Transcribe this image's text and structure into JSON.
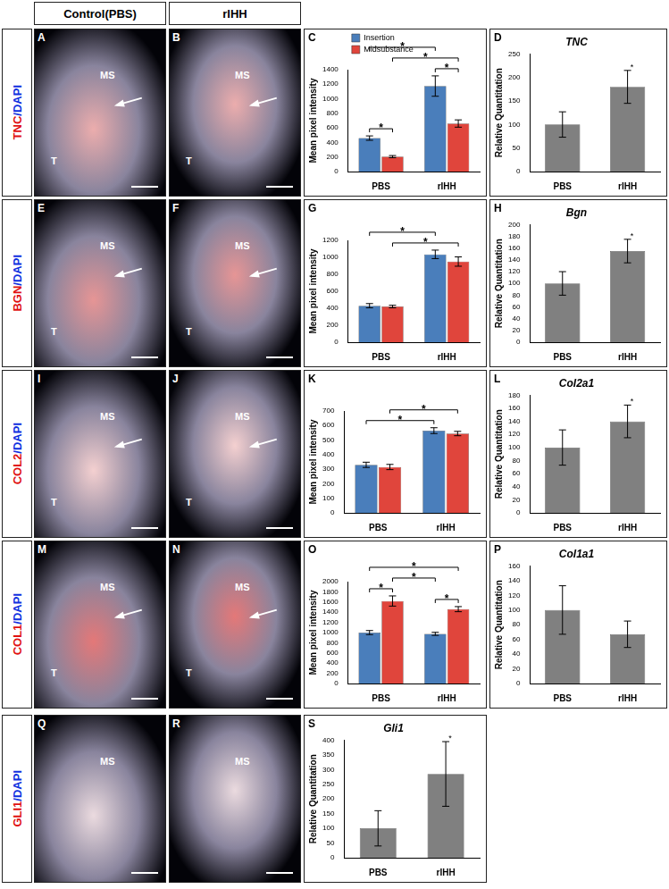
{
  "figure": {
    "header": {
      "columns": [
        "Control(PBS)",
        "rIHH"
      ]
    },
    "rows": [
      {
        "label": "TNC/DAPI",
        "images": [
          {
            "letter": "A",
            "labels": [
              "MS",
              "T"
            ]
          },
          {
            "letter": "B",
            "labels": [
              "MS",
              "T"
            ]
          }
        ]
      },
      {
        "label": "BGN/DAPI",
        "images": [
          {
            "letter": "E",
            "labels": [
              "MS",
              "T"
            ]
          },
          {
            "letter": "F",
            "labels": [
              "MS",
              "T"
            ]
          }
        ]
      },
      {
        "label": "COL2/DAPI",
        "images": [
          {
            "letter": "I",
            "labels": [
              "MS",
              "T"
            ]
          },
          {
            "letter": "J",
            "labels": [
              "MS",
              "T"
            ]
          }
        ]
      },
      {
        "label": "COL1/DAPI",
        "images": [
          {
            "letter": "M",
            "labels": [
              "MS",
              "T"
            ]
          },
          {
            "letter": "N",
            "labels": [
              "MS",
              "T"
            ]
          }
        ]
      },
      {
        "label": "GLI1/DAPI",
        "images": [
          {
            "letter": "Q",
            "labels": [
              "MS"
            ]
          },
          {
            "letter": "R",
            "labels": [
              "MS"
            ]
          }
        ]
      }
    ]
  },
  "chart_data": [
    {
      "type": "bar",
      "panel": "C",
      "y_label": "Mean pixel intensity",
      "categories": [
        "PBS",
        "rIHH"
      ],
      "series": [
        {
          "name": "Insertion",
          "color": "#4a7ebb",
          "values": [
            460,
            1175
          ],
          "errors": [
            30,
            140
          ]
        },
        {
          "name": "Midsubstance",
          "color": "#e0453c",
          "values": [
            205,
            660
          ],
          "errors": [
            15,
            50
          ]
        }
      ],
      "ylim": [
        0,
        1400
      ],
      "yticks": [
        0,
        200,
        400,
        600,
        800,
        1000,
        1200,
        1400
      ],
      "grid": false,
      "legend": "top-left",
      "significance": [
        {
          "from": [
            0,
            0
          ],
          "to": [
            0,
            1
          ],
          "label": "*"
        },
        {
          "from": [
            1,
            0
          ],
          "to": [
            1,
            1
          ],
          "label": "*"
        },
        {
          "from": [
            0,
            0
          ],
          "to": [
            1,
            0
          ],
          "label": "*"
        },
        {
          "from": [
            0,
            1
          ],
          "to": [
            1,
            1
          ],
          "label": "*"
        }
      ]
    },
    {
      "type": "bar",
      "panel": "D",
      "title": "TNC",
      "y_label": "Relative Quantitation",
      "categories": [
        "PBS",
        "rIHH"
      ],
      "color": "#808080",
      "values": [
        100,
        180
      ],
      "errors": [
        27,
        35
      ],
      "ylim": [
        0,
        250
      ],
      "yticks": [
        0,
        50,
        100,
        150,
        200,
        250
      ],
      "grid": false,
      "significance": [
        {
          "bar": 1,
          "label": "*"
        }
      ]
    },
    {
      "type": "bar",
      "panel": "G",
      "y_label": "Mean pixel intensity",
      "categories": [
        "PBS",
        "rIHH"
      ],
      "series": [
        {
          "color": "#4a7ebb",
          "values": [
            430,
            1035
          ],
          "errors": [
            25,
            50
          ]
        },
        {
          "color": "#e0453c",
          "values": [
            420,
            950
          ],
          "errors": [
            15,
            55
          ]
        }
      ],
      "ylim": [
        0,
        1200
      ],
      "yticks": [
        0,
        200,
        400,
        600,
        800,
        1000,
        1200
      ],
      "grid": false,
      "significance": [
        {
          "from": [
            0,
            0
          ],
          "to": [
            1,
            0
          ],
          "label": "*"
        },
        {
          "from": [
            0,
            1
          ],
          "to": [
            1,
            1
          ],
          "label": "*"
        }
      ]
    },
    {
      "type": "bar",
      "panel": "H",
      "title": "Bgn",
      "y_label": "Relative Quantitation",
      "categories": [
        "PBS",
        "rIHH"
      ],
      "color": "#808080",
      "values": [
        100,
        155
      ],
      "errors": [
        20,
        20
      ],
      "ylim": [
        0,
        200
      ],
      "yticks": [
        0,
        20,
        40,
        60,
        80,
        100,
        120,
        140,
        160,
        180,
        200
      ],
      "grid": false,
      "significance": [
        {
          "bar": 1,
          "label": "*"
        }
      ]
    },
    {
      "type": "bar",
      "panel": "K",
      "y_label": "Mean pixel intensity",
      "categories": [
        "PBS",
        "rIHH"
      ],
      "series": [
        {
          "color": "#4a7ebb",
          "values": [
            330,
            565
          ],
          "errors": [
            18,
            20
          ]
        },
        {
          "color": "#e0453c",
          "values": [
            315,
            545
          ],
          "errors": [
            18,
            15
          ]
        }
      ],
      "ylim": [
        0,
        700
      ],
      "yticks": [
        0,
        100,
        200,
        300,
        400,
        500,
        600,
        700
      ],
      "grid": false,
      "significance": [
        {
          "from": [
            0,
            0
          ],
          "to": [
            1,
            0
          ],
          "label": "*"
        },
        {
          "from": [
            0,
            1
          ],
          "to": [
            1,
            1
          ],
          "label": "*"
        }
      ]
    },
    {
      "type": "bar",
      "panel": "L",
      "title": "Col2a1",
      "y_label": "Relative Quantitation",
      "categories": [
        "PBS",
        "rIHH"
      ],
      "color": "#808080",
      "values": [
        100,
        140
      ],
      "errors": [
        27,
        25
      ],
      "ylim": [
        0,
        180
      ],
      "yticks": [
        0,
        20,
        40,
        60,
        80,
        100,
        120,
        140,
        160,
        180
      ],
      "grid": false,
      "significance": [
        {
          "bar": 1,
          "label": "*"
        }
      ]
    },
    {
      "type": "bar",
      "panel": "O",
      "y_label": "Mean pixel intensity",
      "categories": [
        "PBS",
        "rIHH"
      ],
      "series": [
        {
          "color": "#4a7ebb",
          "values": [
            1000,
            975
          ],
          "errors": [
            40,
            30
          ]
        },
        {
          "color": "#e0453c",
          "values": [
            1620,
            1460
          ],
          "errors": [
            100,
            50
          ]
        }
      ],
      "ylim": [
        0,
        2000
      ],
      "yticks": [
        0,
        200,
        400,
        600,
        800,
        1000,
        1200,
        1400,
        1600,
        1800,
        2000
      ],
      "grid": false,
      "significance": [
        {
          "from": [
            0,
            0
          ],
          "to": [
            0,
            1
          ],
          "label": "*"
        },
        {
          "from": [
            1,
            0
          ],
          "to": [
            1,
            1
          ],
          "label": "*"
        },
        {
          "from": [
            0,
            1
          ],
          "to": [
            1,
            0
          ],
          "label": "*"
        },
        {
          "from": [
            0,
            0
          ],
          "to": [
            1,
            1
          ],
          "label": "*"
        }
      ]
    },
    {
      "type": "bar",
      "panel": "P",
      "title": "Col1a1",
      "y_label": "Relative Quantitation",
      "categories": [
        "PBS",
        "rIHH"
      ],
      "color": "#808080",
      "values": [
        100,
        67
      ],
      "errors": [
        33,
        18
      ],
      "ylim": [
        0,
        160
      ],
      "yticks": [
        0,
        20,
        40,
        60,
        80,
        100,
        120,
        140,
        160
      ],
      "grid": false,
      "significance": []
    },
    {
      "type": "bar",
      "panel": "S",
      "title": "Gli1",
      "y_label": "Relative Quantitation",
      "categories": [
        "PBS",
        "rIHH"
      ],
      "color": "#808080",
      "values": [
        100,
        285
      ],
      "errors": [
        60,
        110
      ],
      "ylim": [
        0,
        400
      ],
      "yticks": [
        0,
        50,
        100,
        150,
        200,
        250,
        300,
        350,
        400
      ],
      "grid": false,
      "significance": [
        {
          "bar": 1,
          "label": "*"
        }
      ]
    }
  ]
}
